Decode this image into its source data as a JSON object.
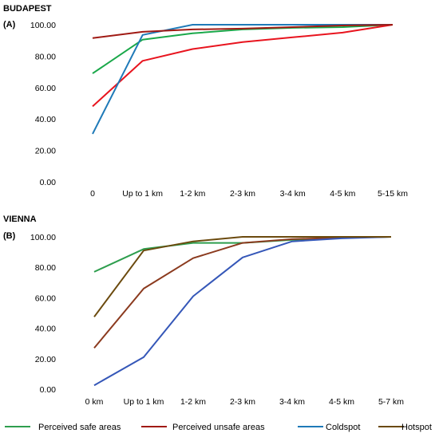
{
  "chart_data": [
    {
      "type": "line",
      "title": "BUDAPEST",
      "panel_label": "(A)",
      "categories": [
        "0",
        "Up to 1 km",
        "1-2 km",
        "2-3 km",
        "3-4 km",
        "4-5 km",
        "5-15 km"
      ],
      "ylim": [
        0,
        100
      ],
      "yticks": [
        "0.00",
        "20.00",
        "40.00",
        "60.00",
        "80.00",
        "100.00"
      ],
      "grid": false,
      "series": [
        {
          "name": "Perceived safe areas",
          "color": "#1aa84a",
          "values": [
            69,
            90.5,
            94.5,
            97,
            98,
            98.5,
            100
          ]
        },
        {
          "name": "Perceived unsafe areas",
          "color": "#e8141e",
          "values": [
            48,
            77,
            84.5,
            89,
            92,
            95,
            100
          ]
        },
        {
          "name": "Coldspot",
          "color": "#1f7ab8",
          "values": [
            30.5,
            93.5,
            100,
            100,
            100,
            100,
            100
          ]
        },
        {
          "name": "Hotspot",
          "color": "#a01a14",
          "values": [
            91.5,
            95.5,
            97,
            97.5,
            98.5,
            99.5,
            100
          ]
        }
      ]
    },
    {
      "type": "line",
      "title": "VIENNA",
      "panel_label": "(B)",
      "categories": [
        "0 km",
        "Up to 1 km",
        "1-2 km",
        "2-3 km",
        "3-4 km",
        "4-5 km",
        "5-7 km"
      ],
      "ylim": [
        0,
        100
      ],
      "yticks": [
        "0.00",
        "20.00",
        "40.00",
        "60.00",
        "80.00",
        "100.00"
      ],
      "grid": false,
      "series": [
        {
          "name": "Perceived safe areas",
          "color": "#2e9e4e",
          "values": [
            77,
            92,
            96,
            96,
            98,
            99.5,
            100
          ]
        },
        {
          "name": "Perceived unsafe areas",
          "color": "#8b3a1e",
          "values": [
            27,
            66,
            86,
            96,
            98.5,
            99.5,
            100
          ]
        },
        {
          "name": "Coldspot",
          "color": "#3557b8",
          "values": [
            2.5,
            21,
            61,
            86.5,
            97,
            99,
            100
          ]
        },
        {
          "name": "Hotspot",
          "color": "#6b4a0e",
          "values": [
            47.5,
            91,
            97,
            100,
            100,
            100,
            100
          ]
        }
      ]
    }
  ],
  "legend": {
    "placement": "bottom",
    "items": [
      {
        "label": "Perceived safe areas",
        "color": "#2e9e4e"
      },
      {
        "label": "Perceived unsafe areas",
        "color": "#a01a14"
      },
      {
        "label": "Coldspot",
        "color": "#1f7ab8"
      },
      {
        "label": "Hotspot",
        "color": "#6b4a0e"
      }
    ]
  }
}
